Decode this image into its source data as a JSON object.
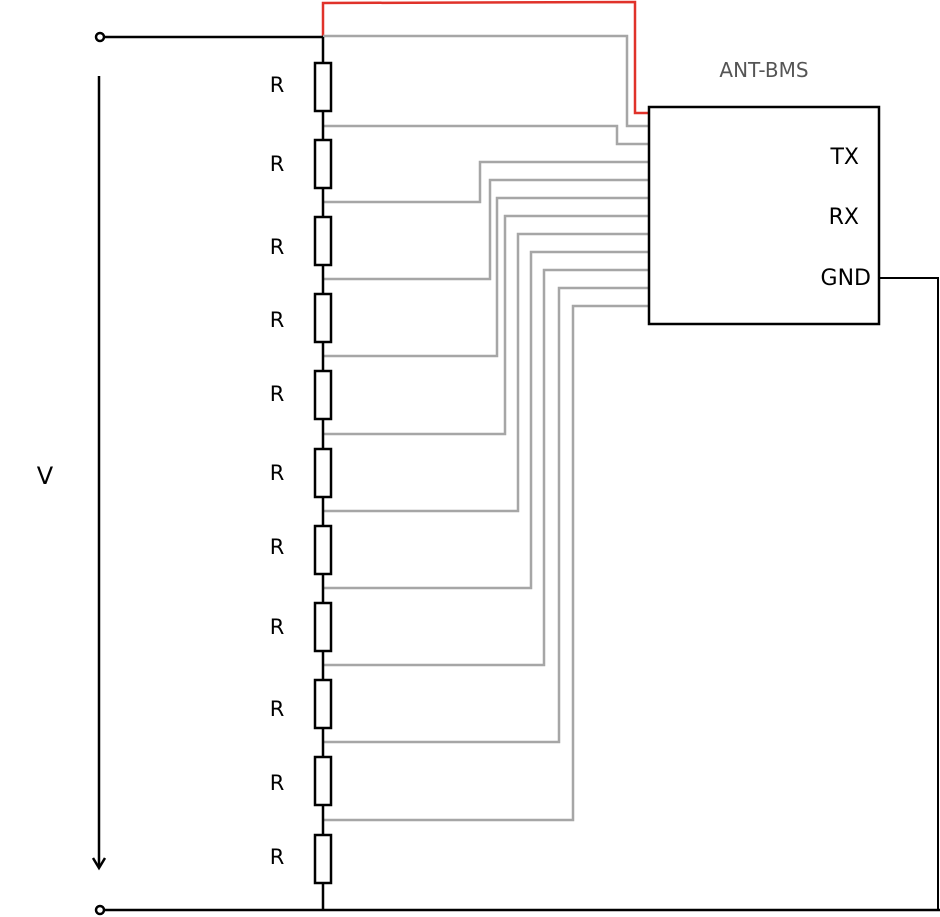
{
  "diagram": {
    "bms_label": "ANT-BMS",
    "pins": {
      "tx": "TX",
      "rx": "RX",
      "gnd": "GND"
    },
    "voltage_label": "V",
    "resistor_label": "R",
    "resistor_labels": [
      "R",
      "R",
      "R",
      "R",
      "R",
      "R",
      "R",
      "R",
      "R",
      "R",
      "R"
    ]
  },
  "colors": {
    "wire_main": "#000000",
    "wire_sense": "#a6a6a6",
    "wire_positive": "#e0322a"
  }
}
